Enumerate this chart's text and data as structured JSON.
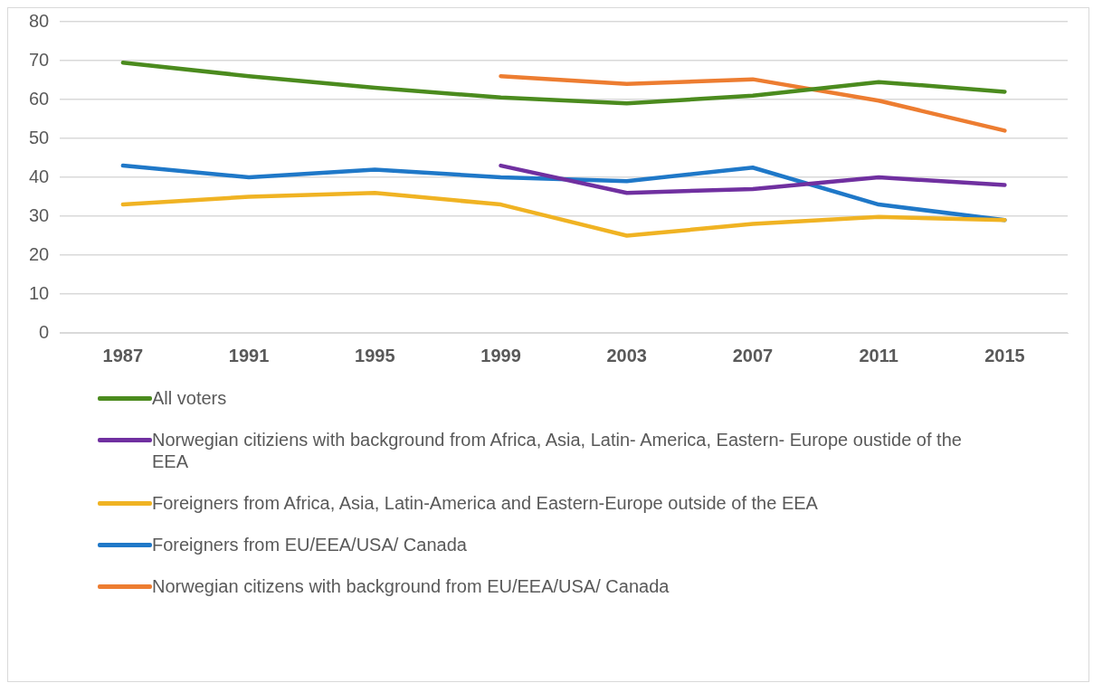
{
  "chart_data": {
    "type": "line",
    "categories": [
      "1987",
      "1991",
      "1995",
      "1999",
      "2003",
      "2007",
      "2011",
      "2015"
    ],
    "series": [
      {
        "name": "All voters",
        "color": "#4b8b1e",
        "values": [
          69.5,
          66,
          63,
          60.5,
          59,
          61,
          64.5,
          62
        ]
      },
      {
        "name": "Norwegian citiziens with background from Africa, Asia, Latin- America, Eastern- Europe oustide of the EEA",
        "color": "#7030a0",
        "values": [
          null,
          null,
          null,
          43,
          36,
          37,
          40,
          38
        ]
      },
      {
        "name": "Foreigners from Africa, Asia, Latin-America and Eastern-Europe outside of the EEA",
        "color": "#f0b323",
        "values": [
          33,
          35,
          36,
          33,
          25,
          28,
          29.8,
          29
        ]
      },
      {
        "name": "Foreigners from EU/EEA/USA/ Canada",
        "color": "#1f78c8",
        "values": [
          43,
          40,
          42,
          40,
          39,
          42.5,
          33,
          29
        ]
      },
      {
        "name": "Norwegian citizens with background from EU/EEA/USA/ Canada",
        "color": "#ed7d31",
        "values": [
          null,
          null,
          null,
          66,
          64,
          65.2,
          59.7,
          52
        ]
      }
    ],
    "ylim": [
      0,
      80
    ],
    "yticks": [
      0,
      10,
      20,
      30,
      40,
      50,
      60,
      70,
      80
    ],
    "grid": "y",
    "legend": "bottom",
    "marker": "none",
    "line_style": "solid"
  }
}
